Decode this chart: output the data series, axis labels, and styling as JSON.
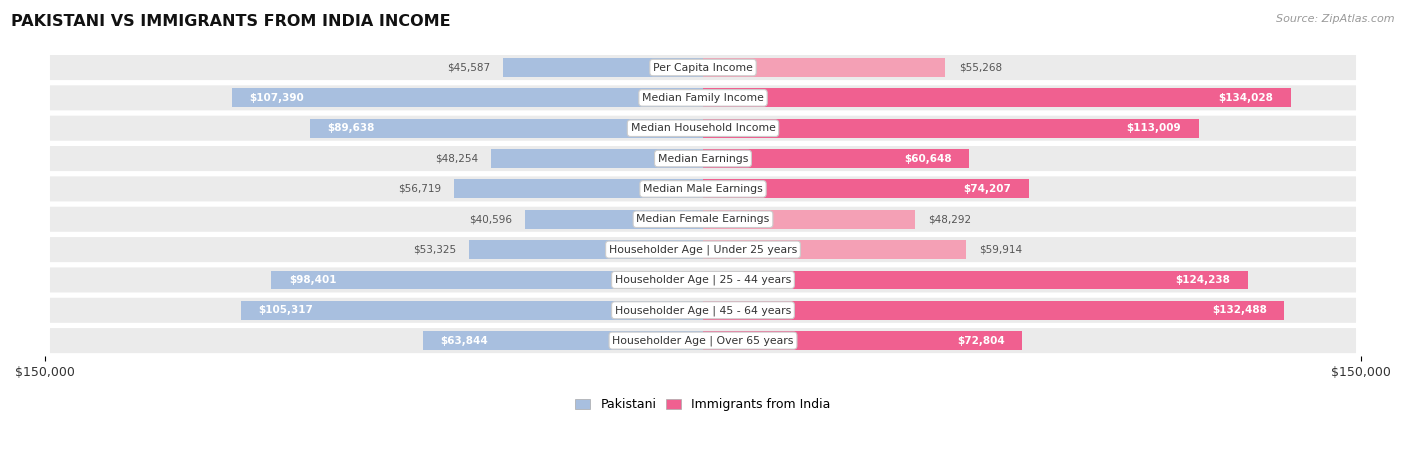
{
  "title": "PAKISTANI VS IMMIGRANTS FROM INDIA INCOME",
  "source": "Source: ZipAtlas.com",
  "max_value": 150000,
  "pakistani_color": "#a8bfdf",
  "india_color": "#f4a0b5",
  "india_color_bright": "#f06090",
  "bg_row_color": "#ebebeb",
  "bg_row_color2": "#f5f5f5",
  "categories": [
    "Per Capita Income",
    "Median Family Income",
    "Median Household Income",
    "Median Earnings",
    "Median Male Earnings",
    "Median Female Earnings",
    "Householder Age | Under 25 years",
    "Householder Age | 25 - 44 years",
    "Householder Age | 45 - 64 years",
    "Householder Age | Over 65 years"
  ],
  "pakistani_values": [
    45587,
    107390,
    89638,
    48254,
    56719,
    40596,
    53325,
    98401,
    105317,
    63844
  ],
  "india_values": [
    55268,
    134028,
    113009,
    60648,
    74207,
    48292,
    59914,
    124238,
    132488,
    72804
  ],
  "pakistani_labels": [
    "$45,587",
    "$107,390",
    "$89,638",
    "$48,254",
    "$56,719",
    "$40,596",
    "$53,325",
    "$98,401",
    "$105,317",
    "$63,844"
  ],
  "india_labels": [
    "$55,268",
    "$134,028",
    "$113,009",
    "$60,648",
    "$74,207",
    "$48,292",
    "$59,914",
    "$124,238",
    "$132,488",
    "$72,804"
  ],
  "legend_pakistani": "Pakistani",
  "legend_india": "Immigrants from India",
  "x_tick_label": "$150,000",
  "inside_threshold": 60000,
  "figsize": [
    14.06,
    4.67
  ],
  "dpi": 100
}
